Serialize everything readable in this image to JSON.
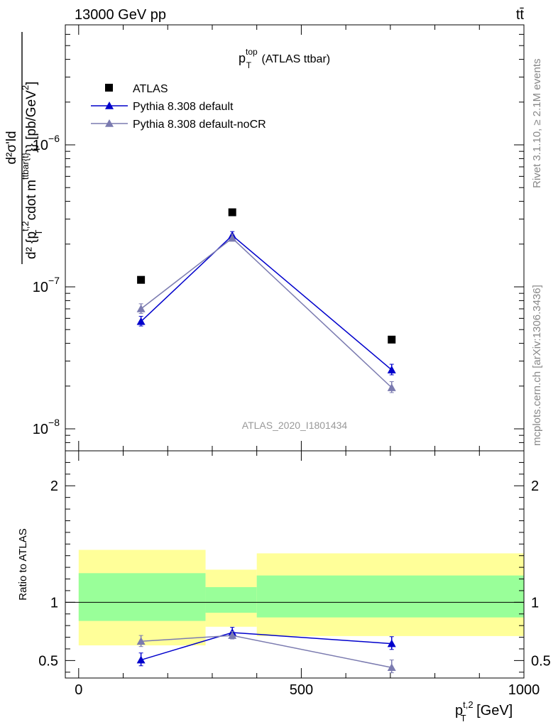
{
  "header": {
    "left": "13000 GeV pp",
    "right": "tt̄"
  },
  "side_labels": {
    "rivet": "Rivet 3.1.10, ≥ 2.1M events",
    "mcplots": "mcplots.cern.ch [arXiv:1306.3436]"
  },
  "chart_data": [
    {
      "type": "scatter",
      "panel": "main",
      "title": {
        "main": "p",
        "sup": "top",
        "sub": "T",
        "suffix": " (ATLAS ttbar)"
      },
      "watermark": "ATLAS_2020_I1801434",
      "ylabel": {
        "numerator": "d²σ'ld",
        "denominator": "d² {p",
        "denominator_sup": "t,2",
        "denominator_sub": "T",
        "denominator_rest": " cdot m",
        "denominator_rest_sup": "ttbar{t}",
        "denominator_end": "}} [pb/GeV",
        "unit_sup": "2",
        "unit_end": "]"
      },
      "yscale": "log",
      "ylim": [
        7e-09,
        7e-06
      ],
      "xlim": [
        -30,
        1000
      ],
      "ytick_labels": [
        {
          "value": 1e-06,
          "base": "10",
          "exp": "−6"
        },
        {
          "value": 1e-07,
          "base": "10",
          "exp": "−7"
        },
        {
          "value": 1e-08,
          "base": "10",
          "exp": "−8"
        }
      ],
      "legend": {
        "placement": "top-left",
        "entries": [
          {
            "label": "ATLAS",
            "marker": "square",
            "color": "#000000"
          },
          {
            "label": "Pythia 8.308 default",
            "marker": "triangle",
            "color": "#0000cc"
          },
          {
            "label": "Pythia 8.308 default-noCR",
            "marker": "triangle",
            "color": "#7b7bb0"
          }
        ]
      },
      "series": [
        {
          "name": "ATLAS",
          "color": "#000000",
          "marker": "square",
          "points": [
            {
              "x": 140,
              "y": 1.12e-07
            },
            {
              "x": 345,
              "y": 3.35e-07
            },
            {
              "x": 703,
              "y": 4.25e-08
            }
          ]
        },
        {
          "name": "Pythia 8.308 default",
          "color": "#0000cc",
          "marker": "triangle",
          "points": [
            {
              "x": 140,
              "y": 5.7e-08,
              "lo": 5.3e-08,
              "hi": 6.2e-08
            },
            {
              "x": 345,
              "y": 2.3e-07,
              "lo": 2.2e-07,
              "hi": 2.45e-07
            },
            {
              "x": 703,
              "y": 2.6e-08,
              "lo": 2.4e-08,
              "hi": 2.85e-08
            }
          ]
        },
        {
          "name": "Pythia 8.308 default-noCR",
          "color": "#7b7bb0",
          "marker": "triangle",
          "points": [
            {
              "x": 140,
              "y": 7e-08,
              "lo": 6.5e-08,
              "hi": 7.6e-08
            },
            {
              "x": 345,
              "y": 2.2e-07,
              "lo": 2.1e-07,
              "hi": 2.35e-07
            },
            {
              "x": 703,
              "y": 1.95e-08,
              "lo": 1.8e-08,
              "hi": 2.15e-08
            }
          ]
        }
      ]
    },
    {
      "type": "scatter",
      "panel": "ratio",
      "ylabel": "Ratio to ATLAS",
      "xlabel": {
        "main": "p",
        "sup": "t,2",
        "sub": "T",
        "suffix": " [GeV]"
      },
      "xlim": [
        -30,
        1000
      ],
      "ylim": [
        0.35,
        2.3
      ],
      "xticks": [
        0,
        500,
        1000
      ],
      "yticks": [
        0.5,
        1,
        2
      ],
      "reference_line": 1,
      "bands": [
        {
          "x0": 0,
          "x1": 285,
          "yellow": [
            0.63,
            1.45
          ],
          "green": [
            0.84,
            1.25
          ]
        },
        {
          "x0": 285,
          "x1": 400,
          "yellow": [
            0.79,
            1.28
          ],
          "green": [
            0.91,
            1.13
          ]
        },
        {
          "x0": 400,
          "x1": 1000,
          "yellow": [
            0.71,
            1.42
          ],
          "green": [
            0.87,
            1.23
          ]
        }
      ],
      "band_colors": {
        "yellow": "#ffff99",
        "green": "#99ff99"
      },
      "series": [
        {
          "name": "Pythia 8.308 default",
          "color": "#0000cc",
          "points": [
            {
              "x": 140,
              "y": 0.505,
              "lo": 0.455,
              "hi": 0.565
            },
            {
              "x": 345,
              "y": 0.74,
              "lo": 0.7,
              "hi": 0.785
            },
            {
              "x": 703,
              "y": 0.645,
              "lo": 0.595,
              "hi": 0.705
            }
          ]
        },
        {
          "name": "Pythia 8.308 default-noCR",
          "color": "#7b7bb0",
          "points": [
            {
              "x": 140,
              "y": 0.665,
              "lo": 0.62,
              "hi": 0.715
            },
            {
              "x": 345,
              "y": 0.715,
              "lo": 0.685,
              "hi": 0.75
            },
            {
              "x": 703,
              "y": 0.44,
              "lo": 0.395,
              "hi": 0.505
            }
          ]
        }
      ]
    }
  ]
}
